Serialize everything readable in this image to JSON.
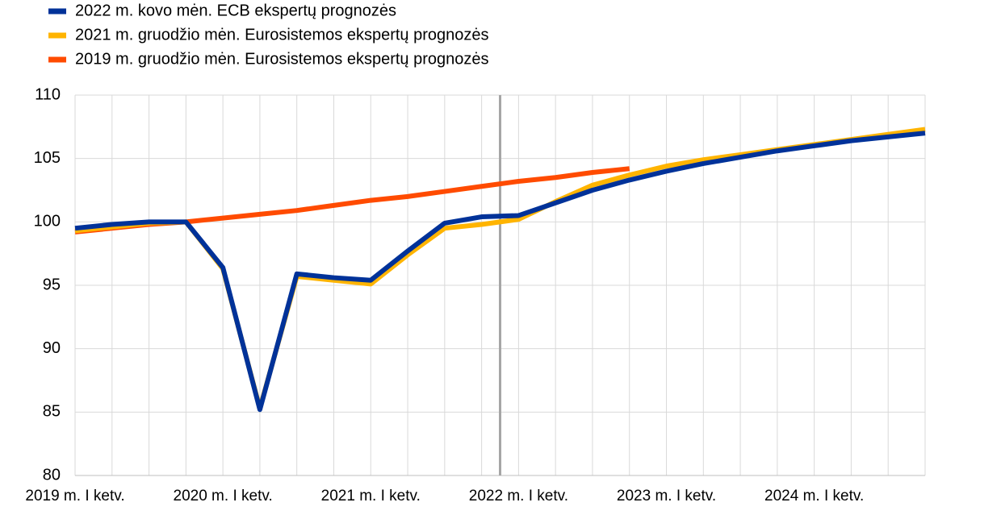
{
  "chart_data": {
    "type": "line",
    "categories": [
      "2019 m. I ketv.",
      null,
      null,
      null,
      "2020 m. I ketv.",
      null,
      null,
      null,
      "2021 m. I ketv.",
      null,
      null,
      null,
      "2022 m. I ketv.",
      null,
      null,
      null,
      "2023 m. I ketv.",
      null,
      null,
      null,
      "2024 m. I ketv.",
      null,
      null,
      null
    ],
    "series": [
      {
        "name": "2022 m. kovo mėn. ECB ekspertų prognozės",
        "color": "#003299",
        "values": [
          99.5,
          99.8,
          100.0,
          100.0,
          96.4,
          85.2,
          95.9,
          95.6,
          95.4,
          97.7,
          99.9,
          100.4,
          100.5,
          101.5,
          102.5,
          103.3,
          104.0,
          104.6,
          105.1,
          105.6,
          106.0,
          106.4,
          106.7,
          107.0
        ]
      },
      {
        "name": "2021 m. gruodžio mėn. Eurosistemos ekspertų prognozės",
        "color": "#ffb400",
        "values": [
          99.3,
          99.6,
          99.9,
          100.0,
          96.3,
          85.3,
          95.7,
          95.4,
          95.1,
          97.4,
          99.5,
          99.8,
          100.2,
          101.6,
          102.9,
          103.7,
          104.4,
          104.9,
          105.3,
          105.7,
          106.1,
          106.5,
          106.9,
          107.3
        ]
      },
      {
        "name": "2019 m. gruodžio mėn. Eurosistemos ekspertų prognozės",
        "color": "#ff4b00",
        "values": [
          99.2,
          99.5,
          99.8,
          100.0,
          100.3,
          100.6,
          100.9,
          101.3,
          101.7,
          102.0,
          102.4,
          102.8,
          103.2,
          103.5,
          103.9,
          104.2,
          null,
          null,
          null,
          null,
          null,
          null,
          null,
          null
        ]
      }
    ],
    "ylim": [
      80,
      110
    ],
    "yticks": [
      80,
      85,
      90,
      95,
      100,
      105,
      110
    ],
    "grid": true
  }
}
